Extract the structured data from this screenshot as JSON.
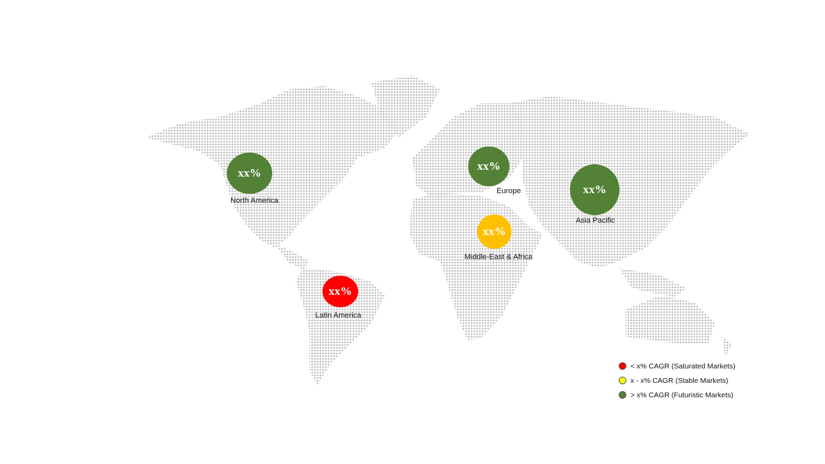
{
  "regions": [
    {
      "name": "North America",
      "value": "xx%",
      "category": "futuristic",
      "color": "#538135"
    },
    {
      "name": "Europe",
      "value": "xx%",
      "category": "futuristic",
      "color": "#538135"
    },
    {
      "name": "Asia Pacific",
      "value": "xx%",
      "category": "futuristic",
      "color": "#538135"
    },
    {
      "name": "Middle-East & Africa",
      "value": "xx%",
      "category": "stable",
      "color": "#FFC000"
    },
    {
      "name": "Latin America",
      "value": "xx%",
      "category": "saturated",
      "color": "#FF0000"
    }
  ],
  "legend": [
    {
      "label": "< x% CAGR (Saturated Markets)",
      "color": "#FF0000"
    },
    {
      "label": "x - x% CAGR (Stable Markets)",
      "color": "#FFFF00"
    },
    {
      "label": "> x% CAGR (Futuristic Markets)",
      "color": "#538135"
    }
  ],
  "map_style": {
    "type": "dotted world map",
    "dot_color": "#BDBDBD"
  }
}
